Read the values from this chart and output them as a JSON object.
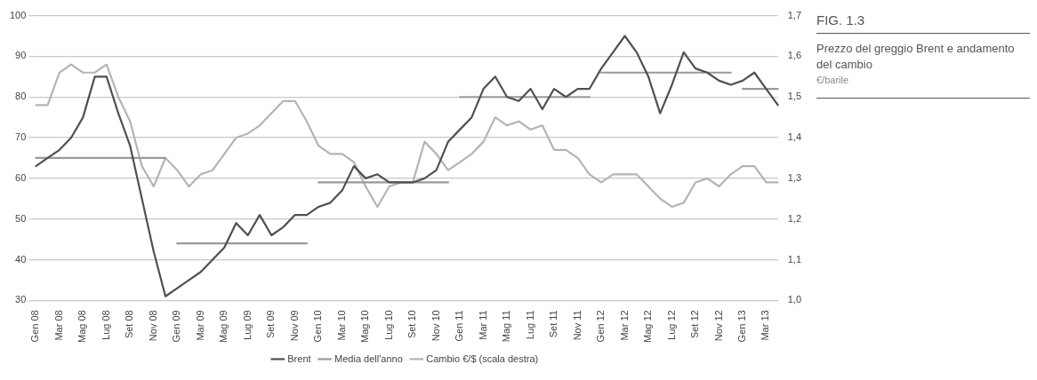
{
  "chart_data": {
    "type": "line",
    "title": "FIG. 1.3",
    "subtitle": "Prezzo del greggio Brent e andamento del cambio",
    "annotations": [
      "€/barile"
    ],
    "categories": [
      "Gen 08",
      null,
      "Mar 08",
      null,
      "Mag 08",
      null,
      "Lug 08",
      null,
      "Set 08",
      null,
      "Nov 08",
      null,
      "Gen 09",
      null,
      "Mar 09",
      null,
      "Mag 09",
      null,
      "Lug 09",
      null,
      "Set 09",
      null,
      "Nov 09",
      null,
      "Gen 10",
      null,
      "Mar 10",
      null,
      "Mag 10",
      null,
      "Lug 10",
      null,
      "Set 10",
      null,
      "Nov 10",
      null,
      "Gen 11",
      null,
      "Mar 11",
      null,
      "Mag 11",
      null,
      "Lug 11",
      null,
      "Set 11",
      null,
      "Nov 11",
      null,
      "Gen 12",
      null,
      "Mar 12",
      null,
      "Mag 12",
      null,
      "Lug 12",
      null,
      "Set 12",
      null,
      "Nov 12",
      null,
      "Gen 13",
      null,
      "Mar 13",
      null
    ],
    "series": [
      {
        "name": "Brent",
        "color": "#505050",
        "values": [
          63,
          65,
          67,
          70,
          75,
          85,
          85,
          76,
          68,
          55,
          42,
          31,
          33,
          35,
          37,
          40,
          43,
          49,
          46,
          51,
          46,
          48,
          51,
          51,
          53,
          54,
          57,
          63,
          60,
          61,
          59,
          59,
          59,
          60,
          62,
          69,
          72,
          75,
          82,
          85,
          80,
          79,
          82,
          77,
          82,
          80,
          82,
          82,
          87,
          91,
          95,
          91,
          85,
          76,
          83,
          91,
          87,
          86,
          84,
          83,
          84,
          86,
          82,
          78
        ]
      },
      {
        "name": "Media dell'anno",
        "type": "step",
        "color": "#9a9a9a",
        "values": [
          65,
          65,
          65,
          65,
          65,
          65,
          65,
          65,
          65,
          65,
          65,
          65,
          44,
          44,
          44,
          44,
          44,
          44,
          44,
          44,
          44,
          44,
          44,
          44,
          59,
          59,
          59,
          59,
          59,
          59,
          59,
          59,
          59,
          59,
          59,
          59,
          80,
          80,
          80,
          80,
          80,
          80,
          80,
          80,
          80,
          80,
          80,
          80,
          86,
          86,
          86,
          86,
          86,
          86,
          86,
          86,
          86,
          86,
          86,
          86,
          82,
          82,
          82,
          82
        ]
      },
      {
        "name": "Cambio €/$ (scala destra)",
        "color": "#b4b4b4",
        "axis": "y2",
        "values": [
          1.48,
          1.48,
          1.56,
          1.58,
          1.56,
          1.56,
          1.58,
          1.5,
          1.44,
          1.33,
          1.28,
          1.35,
          1.32,
          1.28,
          1.31,
          1.32,
          1.36,
          1.4,
          1.41,
          1.43,
          1.46,
          1.49,
          1.49,
          1.44,
          1.38,
          1.36,
          1.36,
          1.34,
          1.28,
          1.23,
          1.28,
          1.29,
          1.29,
          1.39,
          1.36,
          1.32,
          1.34,
          1.36,
          1.39,
          1.45,
          1.43,
          1.44,
          1.42,
          1.43,
          1.37,
          1.37,
          1.35,
          1.31,
          1.29,
          1.31,
          1.31,
          1.31,
          1.28,
          1.25,
          1.23,
          1.24,
          1.29,
          1.3,
          1.28,
          1.31,
          1.33,
          1.33,
          1.29,
          1.29
        ]
      }
    ],
    "ylim": [
      30,
      100
    ],
    "yticks": [
      30,
      40,
      50,
      60,
      70,
      80,
      90,
      100
    ],
    "y2lim": [
      1.0,
      1.7
    ],
    "y2ticks": [
      {
        "value": 1.0,
        "label": "1,0"
      },
      {
        "value": 1.1,
        "label": "1,1"
      },
      {
        "value": 1.2,
        "label": "1,2"
      },
      {
        "value": 1.3,
        "label": "1,3"
      },
      {
        "value": 1.4,
        "label": "1,4"
      },
      {
        "value": 1.5,
        "label": "1,5"
      },
      {
        "value": 1.6,
        "label": "1,6"
      },
      {
        "value": 1.7,
        "label": "1,7"
      }
    ],
    "grid": "y",
    "legend": "bottom",
    "marker": "none",
    "line_style": "solid"
  }
}
